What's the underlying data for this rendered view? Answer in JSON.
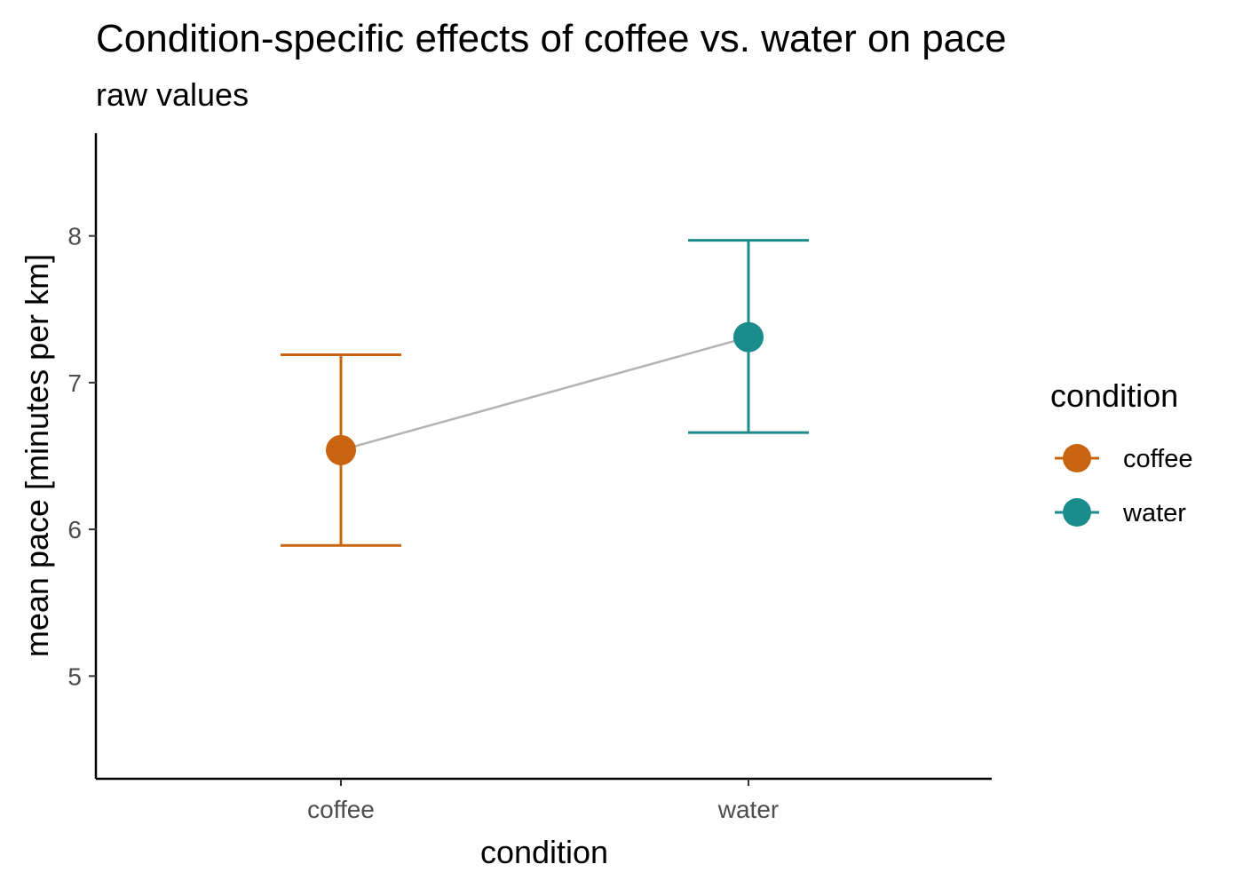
{
  "chart_data": {
    "type": "scatter",
    "title": "Condition-specific effects of coffee vs. water on pace",
    "subtitle": "raw values",
    "xlabel": "condition",
    "ylabel": "mean pace [minutes per km]",
    "categories": [
      "coffee",
      "water"
    ],
    "series": [
      {
        "name": "coffee",
        "x": "coffee",
        "y": 6.54,
        "ymin": 5.89,
        "ymax": 7.19,
        "color": "#c8640f"
      },
      {
        "name": "water",
        "x": "water",
        "y": 7.31,
        "ymin": 6.66,
        "ymax": 7.97,
        "color": "#1b8c8c"
      }
    ],
    "connector_color": "#b3b3b3",
    "ylim": [
      4.3,
      8.7
    ],
    "yticks": [
      5,
      6,
      7,
      8
    ],
    "grid": false,
    "legend": {
      "title": "condition",
      "placement": "right",
      "entries": [
        "coffee",
        "water"
      ]
    }
  }
}
